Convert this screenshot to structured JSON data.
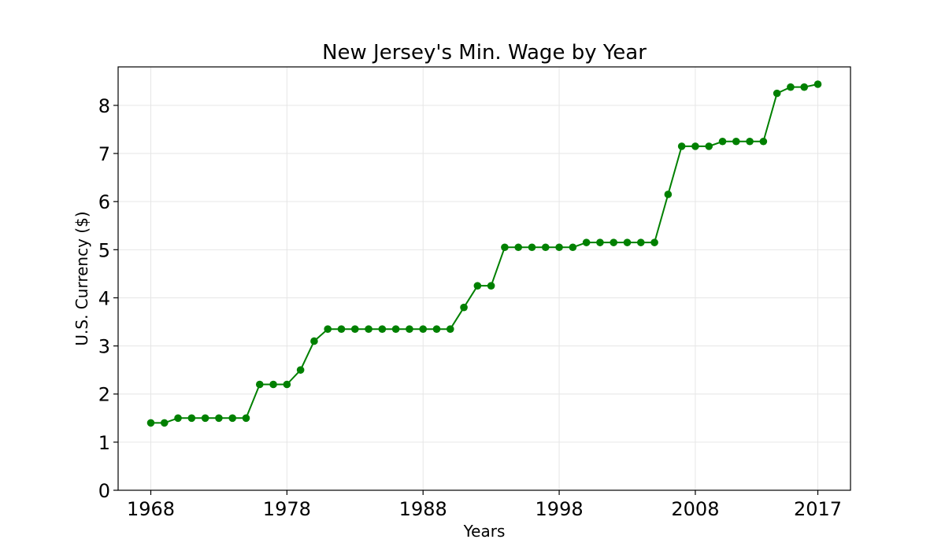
{
  "chart_data": {
    "type": "line",
    "title": "New Jersey's Min. Wage by Year",
    "xlabel": "Years",
    "ylabel": "U.S. Currency ($)",
    "xlim": [
      1965.6,
      2019.4
    ],
    "ylim": [
      0,
      8.8
    ],
    "xticks": [
      1968,
      1978,
      1988,
      1998,
      2008,
      2017
    ],
    "yticks": [
      0,
      1,
      2,
      3,
      4,
      5,
      6,
      7,
      8
    ],
    "grid": true,
    "line_color": "#008000",
    "marker": "circle",
    "series": [
      {
        "x": [
          1968,
          1969,
          1970,
          1971,
          1972,
          1973,
          1974,
          1975,
          1976,
          1977,
          1978,
          1979,
          1980,
          1981,
          1982,
          1983,
          1984,
          1985,
          1986,
          1987,
          1988,
          1989,
          1990,
          1991,
          1992,
          1993,
          1994,
          1995,
          1996,
          1997,
          1998,
          1999,
          2000,
          2001,
          2002,
          2003,
          2004,
          2005,
          2006,
          2007,
          2008,
          2009,
          2010,
          2011,
          2012,
          2013,
          2014,
          2015,
          2016,
          2017
        ],
        "values": [
          1.4,
          1.4,
          1.5,
          1.5,
          1.5,
          1.5,
          1.5,
          1.5,
          2.2,
          2.2,
          2.2,
          2.5,
          3.1,
          3.35,
          3.35,
          3.35,
          3.35,
          3.35,
          3.35,
          3.35,
          3.35,
          3.35,
          3.35,
          3.8,
          4.25,
          4.25,
          5.05,
          5.05,
          5.05,
          5.05,
          5.05,
          5.05,
          5.15,
          5.15,
          5.15,
          5.15,
          5.15,
          5.15,
          6.15,
          7.15,
          7.15,
          7.15,
          7.25,
          7.25,
          7.25,
          7.25,
          8.25,
          8.38,
          8.38,
          8.44
        ]
      }
    ]
  }
}
